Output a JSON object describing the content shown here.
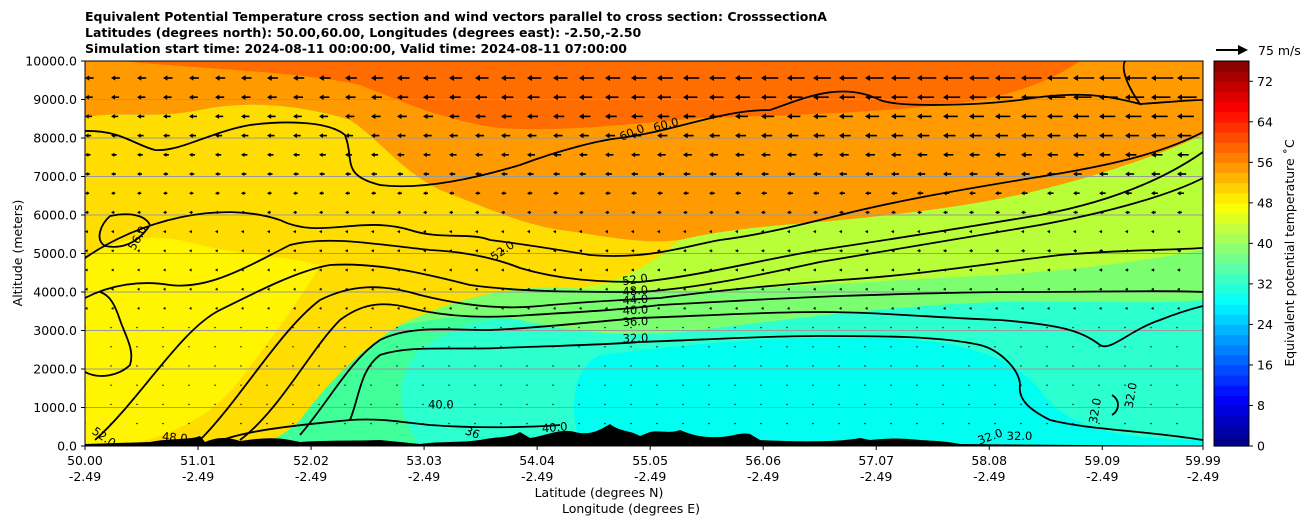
{
  "chart_data": {
    "type": "contour",
    "title_lines": [
      "Equivalent Potential Temperature cross section and wind vectors parallel to cross section: CrosssectionA",
      "Latitudes (degrees north): 50.00,60.00, Longitudes (degrees east): -2.50,-2.50",
      "Simulation start time: 2024-08-11 00:00:00, Valid time: 2024-08-11 07:00:00"
    ],
    "ylabel": "Altitude (meters)",
    "xlabel_line1": "Latitude (degrees N)",
    "xlabel_line2": "Longitude (degrees E)",
    "xlim": [
      50.0,
      59.99
    ],
    "ylim": [
      0,
      10000
    ],
    "x_ticks": [
      {
        "lat": "50.00",
        "lon": "-2.49",
        "value": 50.0
      },
      {
        "lat": "51.01",
        "lon": "-2.49",
        "value": 51.01
      },
      {
        "lat": "52.02",
        "lon": "-2.49",
        "value": 52.02
      },
      {
        "lat": "53.03",
        "lon": "-2.49",
        "value": 53.03
      },
      {
        "lat": "54.04",
        "lon": "-2.49",
        "value": 54.04
      },
      {
        "lat": "55.05",
        "lon": "-2.49",
        "value": 55.05
      },
      {
        "lat": "56.06",
        "lon": "-2.49",
        "value": 56.06
      },
      {
        "lat": "57.07",
        "lon": "-2.49",
        "value": 57.07
      },
      {
        "lat": "58.08",
        "lon": "-2.49",
        "value": 58.08
      },
      {
        "lat": "59.09",
        "lon": "-2.49",
        "value": 59.09
      },
      {
        "lat": "59.99",
        "lon": "-2.49",
        "value": 59.99
      }
    ],
    "y_ticks": [
      0,
      1000,
      2000,
      3000,
      4000,
      5000,
      6000,
      7000,
      8000,
      9000,
      10000
    ],
    "y_tick_labels": [
      "0.0",
      "1000.0",
      "2000.0",
      "3000.0",
      "4000.0",
      "5000.0",
      "6000.0",
      "7000.0",
      "8000.0",
      "9000.0",
      "10000.0"
    ],
    "grid": "horizontal",
    "colorbar": {
      "label": "Equivalent potential temperature $^\\circ$C",
      "label_display": "Equivalent potential temperature ˚C",
      "range": [
        0,
        76
      ],
      "ticks": [
        0,
        8,
        16,
        24,
        32,
        40,
        48,
        56,
        64,
        72
      ],
      "tick_labels": [
        "0",
        "8",
        "16",
        "24",
        "32",
        "40",
        "48",
        "56",
        "64",
        "72"
      ]
    },
    "wind_key_label": "75 m/s",
    "contour_labels": [
      {
        "text": "60.0",
        "x": 54.9,
        "y": 8050,
        "rot": -22
      },
      {
        "text": "60.0",
        "x": 55.2,
        "y": 8250,
        "rot": -15
      },
      {
        "text": "56.0",
        "x": 50.5,
        "y": 5350,
        "rot": -60
      },
      {
        "text": "52.0",
        "x": 53.75,
        "y": 4990,
        "rot": -35
      },
      {
        "text": "52.0",
        "x": 54.92,
        "y": 4220,
        "rot": -8
      },
      {
        "text": "48.0",
        "x": 54.92,
        "y": 3930,
        "rot": -5
      },
      {
        "text": "44.0",
        "x": 54.92,
        "y": 3700,
        "rot": -4
      },
      {
        "text": "40.0",
        "x": 54.92,
        "y": 3430,
        "rot": -3
      },
      {
        "text": "36.0",
        "x": 54.92,
        "y": 3130,
        "rot": -3
      },
      {
        "text": "32.0",
        "x": 54.92,
        "y": 2700,
        "rot": -2
      },
      {
        "text": "40.0",
        "x": 53.18,
        "y": 980,
        "rot": 0
      },
      {
        "text": "40.0",
        "x": 54.2,
        "y": 380,
        "rot": -5
      },
      {
        "text": "48.0",
        "x": 50.8,
        "y": 120,
        "rot": 5
      },
      {
        "text": "36",
        "x": 53.45,
        "y": 250,
        "rot": 20
      },
      {
        "text": "52.0",
        "x": 50.15,
        "y": 150,
        "rot": 35
      },
      {
        "text": "32.0",
        "x": 59.06,
        "y": 900,
        "rot": -80
      },
      {
        "text": "32.0",
        "x": 59.38,
        "y": 1300,
        "rot": -80
      },
      {
        "text": "32.0",
        "x": 58.1,
        "y": 150,
        "rot": -20
      },
      {
        "text": "32.0",
        "x": 58.35,
        "y": 150,
        "rot": 0
      }
    ]
  }
}
